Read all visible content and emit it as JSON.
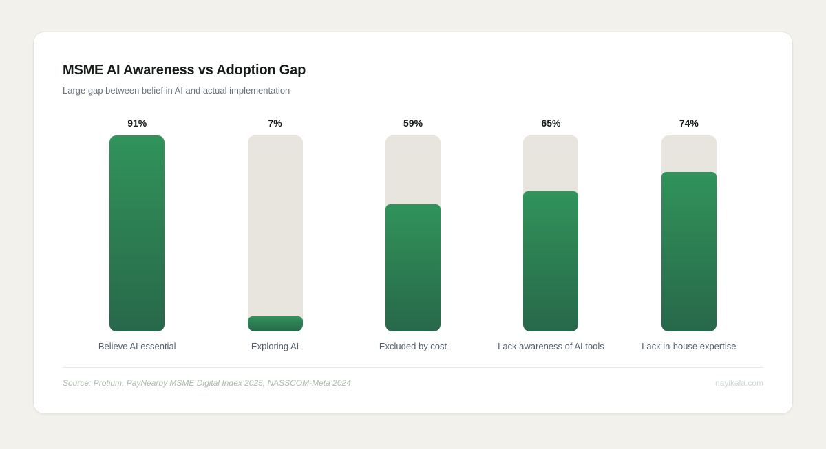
{
  "page": {
    "title": "MSME AI Awareness vs Adoption Gap",
    "subtitle": "Large gap between belief in AI and actual implementation",
    "source": "Source: Protium, PayNearby MSME Digital Index 2025, NASSCOM-Meta 2024",
    "watermark": "nayikala.com"
  },
  "colors": {
    "page_bg": "#f2f1ec",
    "card_bg": "#ffffff",
    "card_border": "#e4e3dc",
    "title": "#161d19",
    "subtitle": "#6b7280",
    "value_label": "#161d19",
    "category_label": "#555f6b",
    "track": "#e8e5de",
    "fill_top": "#31935a",
    "fill_bottom": "#27684a",
    "divider": "#eceae4",
    "source_text": "#a9bcad",
    "watermark": "#ccd8cf"
  },
  "chart_data": {
    "type": "bar",
    "title": "MSME AI Awareness vs Adoption Gap",
    "subtitle": "Large gap between belief in AI and actual implementation",
    "categories": [
      "Believe AI essential",
      "Exploring AI",
      "Excluded by cost",
      "Lack awareness of AI tools",
      "Lack in-house expertise"
    ],
    "values": [
      91,
      7,
      59,
      65,
      74
    ],
    "value_labels": [
      "91%",
      "7%",
      "59%",
      "65%",
      "74%"
    ],
    "unit": "%",
    "orientation": "vertical",
    "bar_scale_max": 91,
    "grid": false,
    "legend": false,
    "axes_shown": false
  }
}
